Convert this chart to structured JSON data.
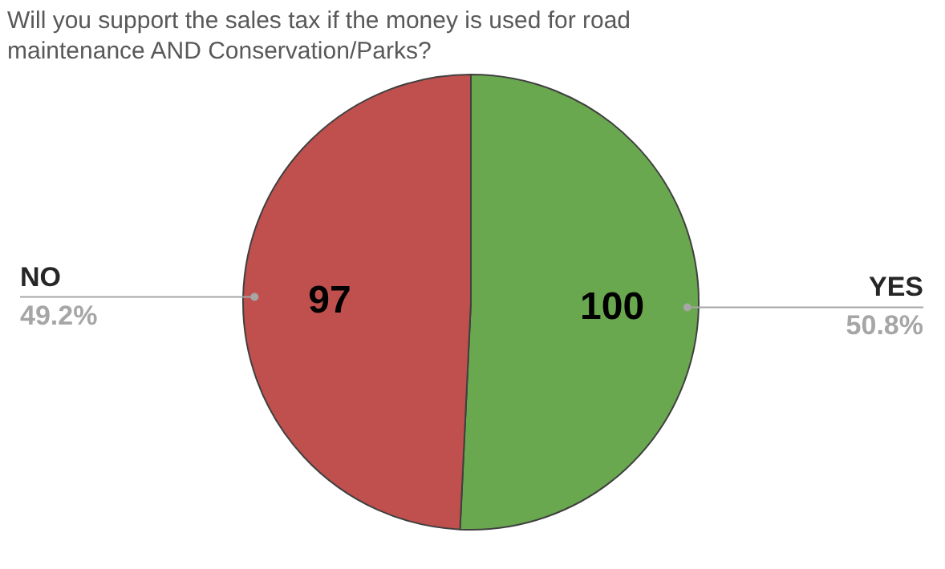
{
  "chart_data": {
    "type": "pie",
    "title": "Will you support the sales tax if the money is used for road maintenance AND Conservation/Parks?",
    "categories": [
      "YES",
      "NO"
    ],
    "values": [
      100,
      97
    ],
    "colors": [
      "#6aa84f",
      "#c0504d"
    ],
    "data_labels": true,
    "annotations": [
      "50.8%",
      "49.2%"
    ]
  }
}
